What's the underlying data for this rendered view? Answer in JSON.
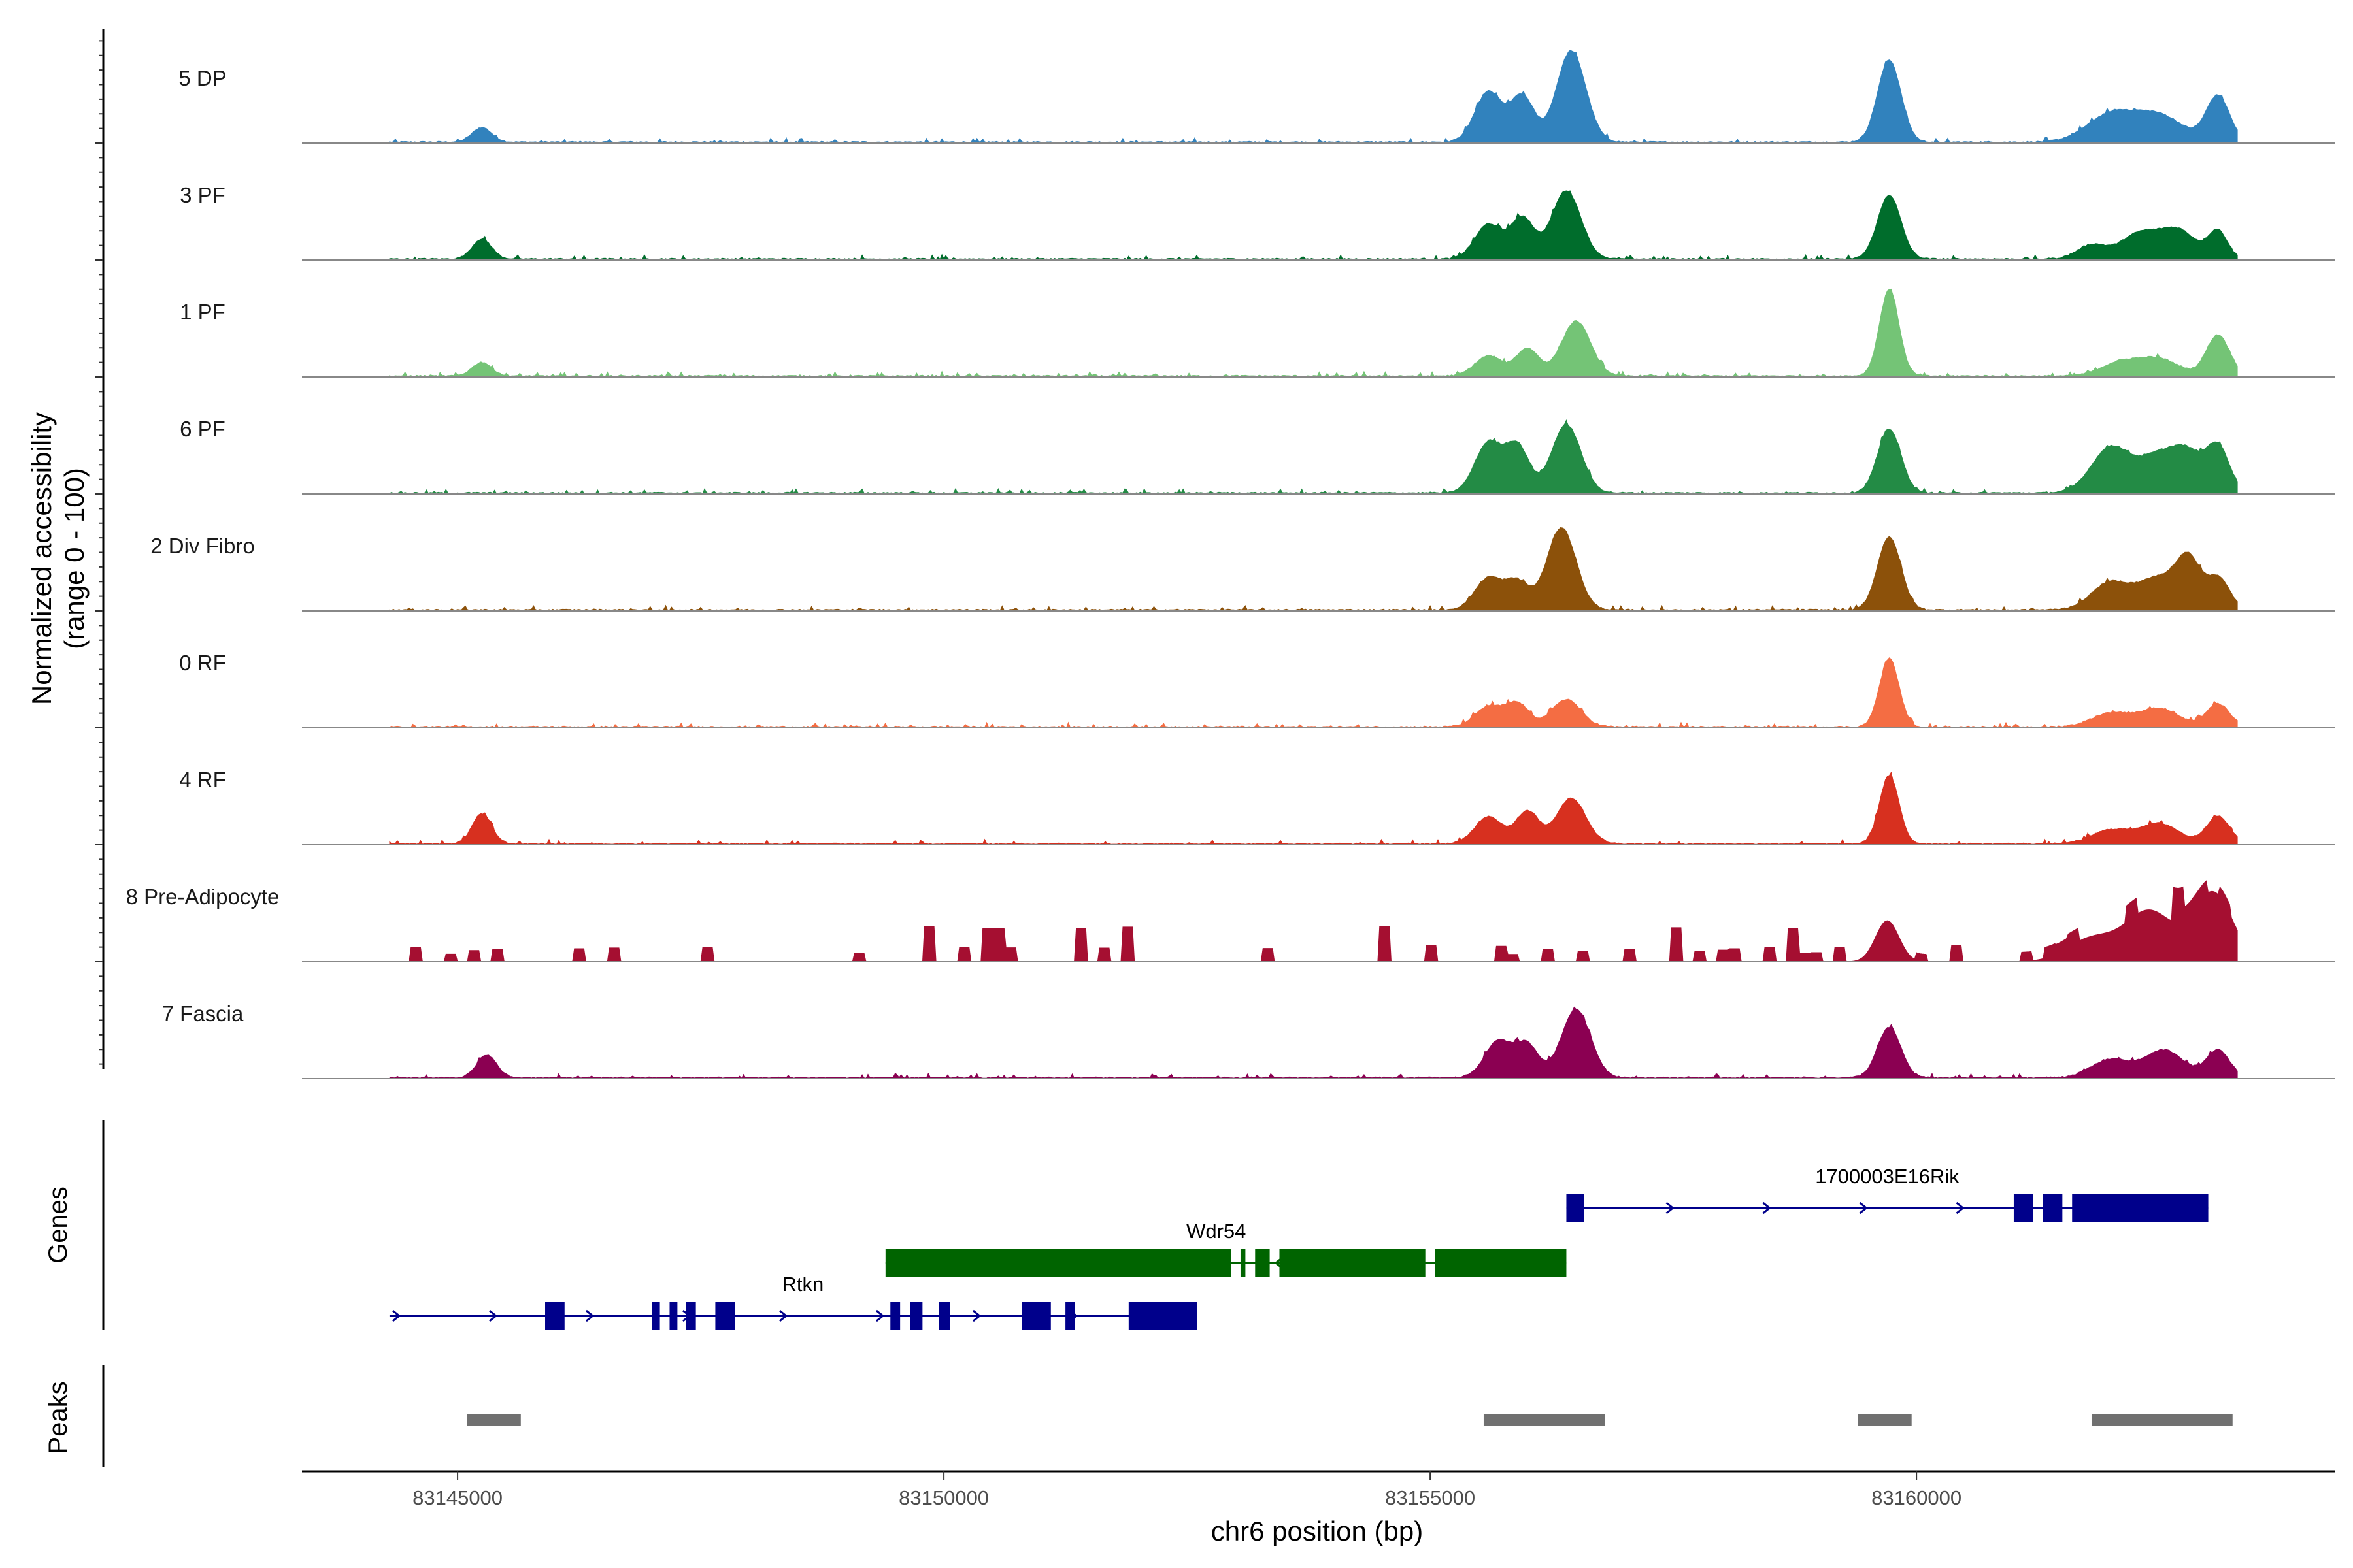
{
  "chart_data": {
    "type": "coverage-plot",
    "chromosome": "chr6",
    "xlim": [
      83143400,
      83164300
    ],
    "xlabel": "chr6 position (bp)",
    "xticks": [
      83145000,
      83150000,
      83155000,
      83160000
    ],
    "xtick_labels": [
      "83145000",
      "83150000",
      "83155000",
      "83160000"
    ],
    "ylabel_line1": "Normalized accessibility",
    "ylabel_line2": "(range 0 - 100)",
    "coverage_range": [
      83144300,
      83163300
    ],
    "tracks": [
      {
        "name": "5 DP",
        "color": "#3182bd",
        "peaks": [
          [
            83145250,
            0.16,
            100
          ],
          [
            83155600,
            0.55,
            140
          ],
          [
            83155950,
            0.5,
            120
          ],
          [
            83156450,
            1.0,
            150
          ],
          [
            83159720,
            0.9,
            120
          ],
          [
            83162000,
            0.3,
            250
          ],
          [
            83162500,
            0.28,
            250
          ],
          [
            83163100,
            0.5,
            120
          ]
        ]
      },
      {
        "name": "3 PF",
        "color": "#006d2c",
        "peaks": [
          [
            83145250,
            0.22,
            100
          ],
          [
            83155600,
            0.38,
            140
          ],
          [
            83155950,
            0.45,
            120
          ],
          [
            83156400,
            0.75,
            150
          ],
          [
            83159720,
            0.7,
            120
          ],
          [
            83161800,
            0.15,
            150
          ],
          [
            83162300,
            0.28,
            200
          ],
          [
            83162700,
            0.3,
            180
          ],
          [
            83163100,
            0.3,
            100
          ]
        ]
      },
      {
        "name": "1 PF",
        "color": "#74c476",
        "peaks": [
          [
            83145250,
            0.15,
            100
          ],
          [
            83155600,
            0.22,
            140
          ],
          [
            83156000,
            0.3,
            120
          ],
          [
            83156500,
            0.6,
            150
          ],
          [
            83159720,
            0.95,
            100
          ],
          [
            83162100,
            0.15,
            200
          ],
          [
            83162500,
            0.18,
            200
          ],
          [
            83163100,
            0.45,
            120
          ]
        ]
      },
      {
        "name": "6 PF",
        "color": "#238b45",
        "peaks": [
          [
            83155600,
            0.55,
            140
          ],
          [
            83155900,
            0.5,
            120
          ],
          [
            83156400,
            0.75,
            150
          ],
          [
            83159720,
            0.7,
            120
          ],
          [
            83162000,
            0.5,
            200
          ],
          [
            83162500,
            0.4,
            200
          ],
          [
            83162800,
            0.35,
            150
          ],
          [
            83163100,
            0.5,
            120
          ]
        ]
      },
      {
        "name": "2 Div Fibro",
        "color": "#8c510a",
        "peaks": [
          [
            83155600,
            0.35,
            140
          ],
          [
            83155900,
            0.3,
            120
          ],
          [
            83156350,
            0.9,
            150
          ],
          [
            83159720,
            0.8,
            120
          ],
          [
            83162000,
            0.3,
            200
          ],
          [
            83162500,
            0.35,
            200
          ],
          [
            83162800,
            0.5,
            120
          ],
          [
            83163100,
            0.35,
            120
          ]
        ]
      },
      {
        "name": "0 RF",
        "color": "#f46d43",
        "peaks": [
          [
            83155600,
            0.22,
            140
          ],
          [
            83155900,
            0.25,
            120
          ],
          [
            83156400,
            0.3,
            150
          ],
          [
            83159720,
            0.75,
            100
          ],
          [
            83162000,
            0.15,
            200
          ],
          [
            83162500,
            0.2,
            200
          ],
          [
            83163100,
            0.25,
            120
          ]
        ]
      },
      {
        "name": "4 RF",
        "color": "#d7301f",
        "peaks": [
          [
            83145250,
            0.33,
            100
          ],
          [
            83155600,
            0.3,
            140
          ],
          [
            83156000,
            0.35,
            120
          ],
          [
            83156450,
            0.5,
            150
          ],
          [
            83159720,
            0.75,
            100
          ],
          [
            83162000,
            0.15,
            200
          ],
          [
            83162500,
            0.22,
            200
          ],
          [
            83163100,
            0.3,
            120
          ]
        ]
      },
      {
        "name": "8 Pre-Adipocyte",
        "color": "#a50f31",
        "peaks": [
          [
            83159700,
            0.45,
            120
          ],
          [
            83161800,
            0.25,
            250
          ],
          [
            83162400,
            0.55,
            250
          ],
          [
            83163050,
            0.75,
            200
          ]
        ]
      },
      {
        "name": "7 Fascia",
        "color": "#8b0052",
        "peaks": [
          [
            83145300,
            0.25,
            100
          ],
          [
            83155700,
            0.4,
            140
          ],
          [
            83156000,
            0.35,
            120
          ],
          [
            83156500,
            0.75,
            150
          ],
          [
            83159720,
            0.55,
            120
          ],
          [
            83162000,
            0.2,
            200
          ],
          [
            83162550,
            0.3,
            200
          ],
          [
            83163100,
            0.3,
            120
          ]
        ]
      }
    ],
    "genes_panel_title": "Genes",
    "genes": [
      {
        "name": "1700003E16Rik",
        "start": 83156400,
        "end": 83163000,
        "strand": "+",
        "type": "thin",
        "color": "#00008b",
        "exons": [
          [
            83156400,
            83156580
          ],
          [
            83161000,
            83161200
          ],
          [
            83161300,
            83161500
          ],
          [
            83161600,
            83163000
          ]
        ]
      },
      {
        "name": "Wdr54",
        "start": 83149400,
        "end": 83156400,
        "strand": "-",
        "type": "thick",
        "color": "#006400",
        "exons": [
          [
            83149400,
            83152950
          ],
          [
            83153050,
            83153100
          ],
          [
            83153200,
            83153350
          ],
          [
            83153450,
            83154950
          ],
          [
            83155050,
            83156400
          ]
        ]
      },
      {
        "name": "Rtkn",
        "start": 83144300,
        "end": 83152600,
        "strand": "+",
        "type": "thin",
        "color": "#00008b",
        "exons": [
          [
            83145900,
            83146100
          ],
          [
            83147000,
            83147080
          ],
          [
            83147180,
            83147260
          ],
          [
            83147350,
            83147450
          ],
          [
            83147650,
            83147850
          ],
          [
            83149450,
            83149550
          ],
          [
            83149650,
            83149780
          ],
          [
            83149950,
            83150060
          ],
          [
            83150800,
            83151100
          ],
          [
            83151250,
            83151350
          ],
          [
            83151900,
            83152600
          ]
        ]
      }
    ],
    "peaks_panel_title": "Peaks",
    "peak_regions": [
      [
        83145100,
        83145650
      ],
      [
        83155550,
        83156800
      ],
      [
        83159400,
        83159950
      ],
      [
        83161800,
        83163250
      ]
    ]
  }
}
